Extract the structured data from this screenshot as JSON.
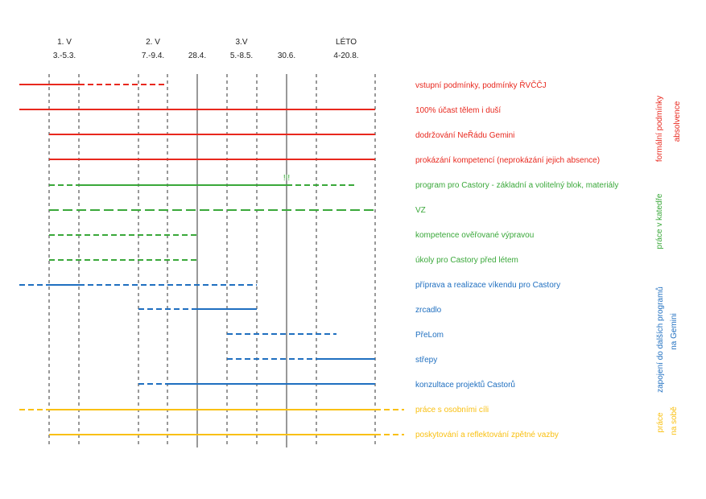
{
  "colors": {
    "red": "#e8281e",
    "green": "#3aa83a",
    "blue": "#1f6fc0",
    "yellow": "#f9c012",
    "grid": "#333333"
  },
  "header": {
    "columns": [
      {
        "top": "1. V",
        "bottom": "3.-5.3."
      },
      {
        "top": "2. V",
        "bottom": "7.-9.4."
      },
      {
        "top": "",
        "bottom": "28.4."
      },
      {
        "top": "3.V",
        "bottom": "5.-8.5."
      },
      {
        "top": "",
        "bottom": "30.6."
      },
      {
        "top": "LÉTO",
        "bottom": "4-20.8."
      }
    ]
  },
  "rows": [
    {
      "label": "vstupní podmínky, podmínky ŘVČČJ",
      "color": "red"
    },
    {
      "label": "100% účast tělem i duší",
      "color": "red"
    },
    {
      "label": "dodržování NeŘádu Gemini",
      "color": "red"
    },
    {
      "label": "prokázání kompetencí (neprokázání jejich absence)",
      "color": "red"
    },
    {
      "label": "program pro Castory - základní a volitelný blok, materiály",
      "color": "green",
      "marker": "!!!"
    },
    {
      "label": "VZ",
      "color": "green"
    },
    {
      "label": "kompetence ověřované výpravou",
      "color": "green"
    },
    {
      "label": "úkoly pro Castory před létem",
      "color": "green"
    },
    {
      "label": "příprava a realizace víkendu pro Castory",
      "color": "blue"
    },
    {
      "label": "zrcadlo",
      "color": "blue"
    },
    {
      "label": "PřeLom",
      "color": "blue"
    },
    {
      "label": "střepy",
      "color": "blue"
    },
    {
      "label": "konzultace projektů Castorů",
      "color": "blue"
    },
    {
      "label": "práce s osobními cíli",
      "color": "yellow"
    },
    {
      "label": "poskytování a reflektování zpětné vazby",
      "color": "yellow"
    }
  ],
  "groups": [
    {
      "lines": [
        "formální podmínky",
        "absolvence"
      ],
      "color": "red"
    },
    {
      "lines": [
        "práce v katedře"
      ],
      "color": "green"
    },
    {
      "lines": [
        "zapojení do dalších programů",
        "na Gemini"
      ],
      "color": "blue"
    },
    {
      "lines": [
        "práce",
        "na sobě"
      ],
      "color": "yellow"
    }
  ]
}
